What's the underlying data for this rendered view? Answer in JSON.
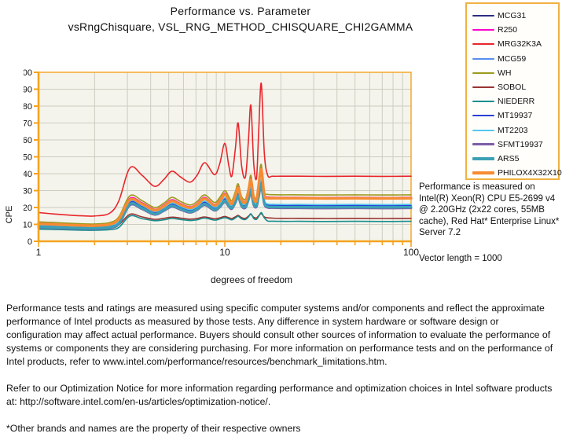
{
  "title": {
    "line1": "Performance  vs. Parameter",
    "line2": "vsRngChisquare,  VSL_RNG_METHOD_CHISQUARE_CHI2GAMMA"
  },
  "colors": {
    "axis": "#F5A31F",
    "grid": "#CCCCC0",
    "plot_bg": "#F5F4EC",
    "legend_border": "#F0B142",
    "text": "#111111"
  },
  "side_note": {
    "system": "Performance is measured on Intel(R) Xeon(R) CPU E5-2699 v4 @ 2.20GHz (2x22 cores, 55MB cache), Red Hat* Enterprise Linux* Server 7.2",
    "vector": "Vector length = 1000"
  },
  "footer": {
    "p1": "Performance tests and ratings are measured using specific computer systems and/or components and reflect the approximate performance of Intel products as measured by those tests. Any difference in system hardware or software design or configuration may affect actual performance. Buyers should consult other sources of information to evaluate the performance of systems or components they are considering purchasing. For more information on performance tests and on the performance of Intel products, refer to www.intel.com/performance/resources/benchmark_limitations.htm.",
    "p2": "Refer to our Optimization Notice for more information regarding performance and optimization choices in Intel software products at: http://software.intel.com/en-us/articles/optimization-notice/.",
    "p3": "*Other brands and names are the property of their respective owners"
  },
  "chart_data": {
    "type": "line",
    "x_scale": "log",
    "xlabel": "degrees of freedom",
    "ylabel": "CPE",
    "ylim": [
      0,
      100
    ],
    "ytick_step": 10,
    "xlim": [
      1,
      100
    ],
    "xticks_labeled": [
      1,
      10,
      100
    ],
    "grid": true,
    "legend_position": "top-right",
    "x": [
      1,
      1.2,
      1.5,
      1.8,
      2,
      2.4,
      2.7,
      3.1,
      3.6,
      4.2,
      4.7,
      5.2,
      5.8,
      6.5,
      7.1,
      7.8,
      8.8,
      9.4,
      10,
      10.5,
      10.9,
      11.4,
      11.8,
      12.3,
      12.9,
      13.4,
      13.8,
      14.3,
      14.8,
      15.2,
      15.7,
      16.3,
      17,
      18,
      20,
      25,
      35,
      50,
      70,
      100
    ],
    "series": [
      {
        "name": "MCG31",
        "color": "#2D2E83",
        "width": 1.6,
        "values": [
          8.8,
          8.5,
          8.2,
          8,
          8,
          8.6,
          11,
          22.4,
          20,
          16.5,
          18.7,
          21.3,
          19.4,
          17.7,
          19.3,
          22.4,
          19,
          21,
          24.3,
          21.4,
          20,
          23.7,
          27.2,
          21.6,
          20.6,
          25.6,
          30.2,
          22.2,
          21.3,
          27.6,
          34,
          22.9,
          20.8,
          20.6,
          20.5,
          20.5,
          20.4,
          20.5,
          20.4,
          20.5
        ]
      },
      {
        "name": "R250",
        "color": "#FF00CC",
        "width": 1.6,
        "values": [
          11,
          10.6,
          10.1,
          9.8,
          9.8,
          10.5,
          13.8,
          25.5,
          22.8,
          19,
          21.4,
          24.6,
          22.3,
          20.4,
          22.3,
          26,
          21.8,
          24.6,
          28.5,
          25,
          22.8,
          28,
          32.5,
          25.2,
          23.8,
          30.5,
          37.5,
          26.2,
          24.8,
          34.2,
          43.5,
          28,
          26.3,
          26.1,
          26,
          26,
          25.9,
          26,
          25.9,
          26
        ]
      },
      {
        "name": "MRG32K3A",
        "color": "#E8262C",
        "width": 1.6,
        "values": [
          17,
          16.2,
          15.4,
          15,
          15,
          16.5,
          24,
          43.5,
          39,
          32.5,
          36.5,
          41.5,
          38,
          35,
          39,
          46.5,
          39.5,
          46,
          58,
          45,
          38.5,
          55,
          70,
          45,
          38,
          60,
          80.5,
          46,
          37.5,
          65,
          93.5,
          52,
          39,
          38.5,
          38.5,
          38.5,
          38.4,
          38.5,
          38.4,
          38.5
        ]
      },
      {
        "name": "MCG59",
        "color": "#5B8DEF",
        "width": 1.6,
        "values": [
          9,
          8.7,
          8.4,
          8.2,
          8.2,
          8.8,
          11.2,
          22.8,
          20.3,
          16.8,
          19,
          21.6,
          19.7,
          18,
          19.6,
          22.8,
          19.3,
          21.4,
          24.7,
          21.8,
          20.3,
          24.1,
          27.7,
          22,
          20.9,
          26,
          30.7,
          22.6,
          21.7,
          28,
          34.6,
          23.3,
          21.2,
          21,
          20.9,
          20.9,
          20.8,
          20.9,
          20.8,
          20.9
        ]
      },
      {
        "name": "WH",
        "color": "#9C9A1C",
        "width": 1.6,
        "values": [
          11.5,
          11.1,
          10.6,
          10.3,
          10.3,
          11,
          14.5,
          27,
          24,
          20,
          22.5,
          26,
          23.5,
          21.5,
          23.5,
          27.5,
          23,
          26,
          30,
          26.5,
          24,
          29.5,
          34,
          26.5,
          25,
          32,
          39,
          27.5,
          26,
          36,
          45.5,
          29.5,
          27.8,
          27.6,
          27.5,
          27.5,
          27.4,
          27.5,
          27.4,
          27.5
        ]
      },
      {
        "name": "SOBOL",
        "color": "#993333",
        "width": 1.6,
        "values": [
          8.8,
          8.5,
          8.1,
          7.9,
          7.9,
          8.3,
          9.8,
          16,
          14.4,
          13,
          13.6,
          14.3,
          13.7,
          13.1,
          13.5,
          14.4,
          13.3,
          13.9,
          14.7,
          14,
          13.5,
          14.5,
          15.3,
          14,
          13.6,
          14.9,
          15.9,
          14.2,
          13.8,
          15.1,
          16.3,
          14.4,
          13.9,
          13.7,
          13.6,
          13.6,
          13.5,
          13.6,
          13.5,
          13.6
        ]
      },
      {
        "name": "NIEDERR",
        "color": "#178F8F",
        "width": 1.6,
        "values": [
          7.2,
          7,
          6.7,
          6.5,
          6.5,
          6.9,
          8.2,
          15,
          13.4,
          12.2,
          12.7,
          13.5,
          12.9,
          12.3,
          12.7,
          13.7,
          12.5,
          13.2,
          14,
          13.3,
          12.7,
          13.8,
          14.8,
          13.3,
          12.9,
          14.4,
          16.3,
          13.5,
          13,
          14.7,
          17,
          13.8,
          12,
          11.9,
          11.8,
          11.8,
          11.7,
          11.8,
          11.7,
          11.8
        ]
      },
      {
        "name": "MT19937",
        "color": "#2B3FD6",
        "width": 1.6,
        "values": [
          9.3,
          9,
          8.7,
          8.5,
          8.5,
          9.1,
          11.6,
          23.2,
          20.7,
          17.1,
          19.3,
          22,
          20.1,
          18.3,
          20,
          23.2,
          19.7,
          21.8,
          25.2,
          22.2,
          20.7,
          24.6,
          28.3,
          22.4,
          21.3,
          26.5,
          31.3,
          23,
          22.1,
          28.6,
          35.3,
          23.8,
          21.6,
          21.4,
          21.3,
          21.3,
          21.2,
          21.3,
          21.2,
          21.3
        ]
      },
      {
        "name": "MT2203",
        "color": "#53C8F0",
        "width": 1.6,
        "values": [
          9.7,
          9.4,
          9,
          8.8,
          8.8,
          9.4,
          12,
          23.8,
          21.2,
          17.6,
          19.8,
          22.6,
          20.6,
          18.8,
          20.5,
          23.8,
          20.2,
          22.3,
          25.8,
          22.8,
          21.2,
          25.2,
          29,
          23,
          21.9,
          27.2,
          32.2,
          23.6,
          22.7,
          29.4,
          36.4,
          24.4,
          22.1,
          21.9,
          21.8,
          21.8,
          21.7,
          21.8,
          21.7,
          21.8
        ]
      },
      {
        "name": "SFMT19937",
        "color": "#7C5CA8",
        "width": 3,
        "values": [
          8.2,
          7.9,
          7.6,
          7.4,
          7.4,
          8,
          10.2,
          21.5,
          19.1,
          15.8,
          18,
          20.5,
          18.7,
          17,
          18.6,
          21.5,
          18.3,
          20.2,
          23.4,
          20.6,
          19.2,
          22.8,
          26.2,
          20.8,
          19.8,
          24.6,
          29,
          21.4,
          20.5,
          26.4,
          32.6,
          22,
          20,
          19.8,
          19.7,
          19.7,
          19.6,
          19.7,
          19.6,
          19.7
        ]
      },
      {
        "name": "ARS5",
        "color": "#3BA0B4",
        "width": 3.2,
        "values": [
          8.5,
          8.2,
          7.9,
          7.7,
          7.7,
          8.3,
          10.6,
          22,
          19.6,
          16.2,
          18.4,
          21,
          19.1,
          17.4,
          19,
          22,
          18.7,
          20.7,
          23.9,
          21.1,
          19.7,
          23.3,
          26.8,
          21.3,
          20.3,
          25.2,
          29.7,
          21.9,
          21,
          27.1,
          33.4,
          22.5,
          20.5,
          20.3,
          20.2,
          20.2,
          20.1,
          20.2,
          20.1,
          20.2
        ]
      },
      {
        "name": "PHILOX4X32X10",
        "color": "#F68B33",
        "width": 3.4,
        "values": [
          10.4,
          10,
          9.6,
          9.3,
          9.3,
          10,
          13.2,
          24.6,
          22,
          18.4,
          20.7,
          23.8,
          21.6,
          19.8,
          21.6,
          25.2,
          21.2,
          23.8,
          27.7,
          24.3,
          22.2,
          27.2,
          31.6,
          24.5,
          23.1,
          29.6,
          36.4,
          25.5,
          24.1,
          33.2,
          42.6,
          27.2,
          25.6,
          25.5,
          25.5,
          25.5,
          25.4,
          25.5,
          25.4,
          25.5
        ]
      }
    ]
  }
}
